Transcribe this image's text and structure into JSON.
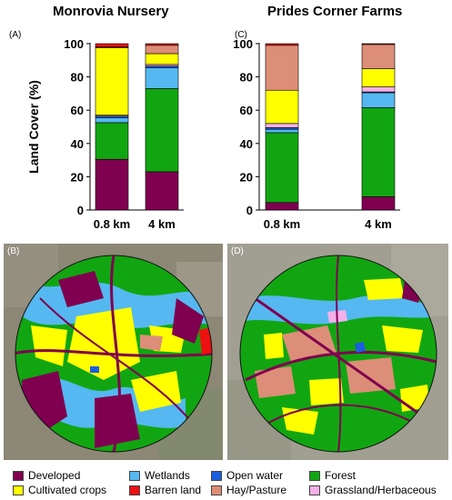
{
  "panels": {
    "left_title": "Monrovia Nursery",
    "right_title": "Prides Corner Farms",
    "letter_a": "(A)",
    "letter_b": "(B)",
    "letter_c": "(C)",
    "letter_d": "(D)"
  },
  "legend": [
    {
      "label": "Developed",
      "color": "#800050"
    },
    {
      "label": "Cultivated crops",
      "color": "#ffff00"
    },
    {
      "label": "Wetlands",
      "color": "#55b8f0"
    },
    {
      "label": "Barren land",
      "color": "#ee1111"
    },
    {
      "label": "Open water",
      "color": "#1a5fe0"
    },
    {
      "label": "Hay/Pasture",
      "color": "#dd8e78"
    },
    {
      "label": "Forest",
      "color": "#11a611"
    },
    {
      "label": "Grassland/Herbaceous",
      "color": "#f5b0e8"
    }
  ],
  "chart_data": [
    {
      "type": "bar",
      "stacked": true,
      "title": "Monrovia Nursery",
      "panel": "(A)",
      "ylabel": "Land Cover (%)",
      "ylim": [
        0,
        100
      ],
      "yticks": [
        0,
        20,
        40,
        60,
        80,
        100
      ],
      "categories": [
        "0.8 km",
        "4 km"
      ],
      "series": [
        {
          "name": "Developed",
          "values": [
            30.5,
            23
          ]
        },
        {
          "name": "Forest",
          "values": [
            22,
            50
          ]
        },
        {
          "name": "Wetlands",
          "values": [
            3,
            12.5
          ]
        },
        {
          "name": "Open water",
          "values": [
            1,
            1
          ]
        },
        {
          "name": "Grassland/Herbaceous",
          "values": [
            0.5,
            1
          ]
        },
        {
          "name": "Cultivated crops",
          "values": [
            40.5,
            6.5
          ]
        },
        {
          "name": "Hay/Pasture",
          "values": [
            0.5,
            5
          ]
        },
        {
          "name": "Barren land",
          "values": [
            2,
            1
          ]
        }
      ]
    },
    {
      "type": "bar",
      "stacked": true,
      "title": "Prides Corner Farms",
      "panel": "(C)",
      "ylabel": "",
      "ylim": [
        0,
        100
      ],
      "yticks": [
        0,
        20,
        40,
        60,
        80,
        100
      ],
      "categories": [
        "0.8 km",
        "4 km"
      ],
      "series": [
        {
          "name": "Developed",
          "values": [
            4.5,
            8
          ]
        },
        {
          "name": "Forest",
          "values": [
            42,
            53.5
          ]
        },
        {
          "name": "Wetlands",
          "values": [
            2,
            9
          ]
        },
        {
          "name": "Open water",
          "values": [
            1,
            0.5
          ]
        },
        {
          "name": "Grassland/Herbaceous",
          "values": [
            2.5,
            3
          ]
        },
        {
          "name": "Cultivated crops",
          "values": [
            20,
            11
          ]
        },
        {
          "name": "Hay/Pasture",
          "values": [
            27,
            14.5
          ]
        },
        {
          "name": "Barren land",
          "values": [
            1,
            0.5
          ]
        }
      ]
    }
  ]
}
